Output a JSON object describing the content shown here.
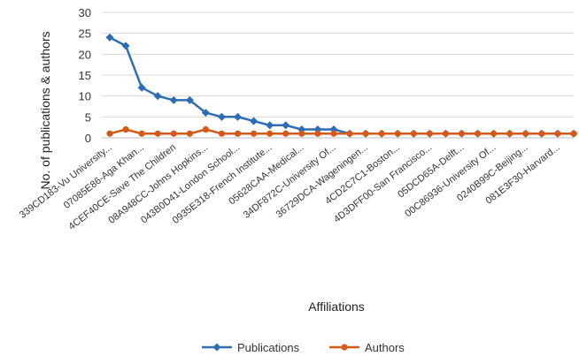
{
  "chart_data": {
    "type": "line",
    "title": "",
    "xlabel": "Affiliations",
    "ylabel": "No. of publications & authors",
    "ylim": [
      0,
      30
    ],
    "yticks": [
      0,
      5,
      10,
      15,
      20,
      25,
      30
    ],
    "grid": "horizontal",
    "legend_position": "bottom",
    "categories_shown": [
      "339CD183-Vu University...",
      "07085E86-Aga Khan...",
      "4CEF40CE-Save The Children",
      "08A948CC-Johns Hopkins...",
      "043B0D41-London School...",
      "0935E318-French Institute...",
      "05628CAA-Medical...",
      "34DF872C-University Of...",
      "36729DCA-Wageningen...",
      "4CD2C7C1-Boston...",
      "4D3DFF00-San Francisco...",
      "05DCD65A-Delft...",
      "00C86936-University Of...",
      "0240B99C-Beijing...",
      "081E3F30-Harvard..."
    ],
    "series": [
      {
        "name": "Publications",
        "color": "#2E6DB4",
        "values": [
          24,
          22,
          12,
          10,
          9,
          9,
          6,
          5,
          5,
          4,
          3,
          3,
          2,
          2,
          2,
          1,
          1,
          1,
          1,
          1,
          1,
          1,
          1,
          1,
          1,
          1,
          1,
          1,
          1,
          1
        ]
      },
      {
        "name": "Authors",
        "color": "#D45A1A",
        "values": [
          1,
          2,
          1,
          1,
          1,
          1,
          2,
          1,
          1,
          1,
          1,
          1,
          1,
          1,
          1,
          1,
          1,
          1,
          1,
          1,
          1,
          1,
          1,
          1,
          1,
          1,
          1,
          1,
          1,
          1
        ]
      }
    ]
  }
}
